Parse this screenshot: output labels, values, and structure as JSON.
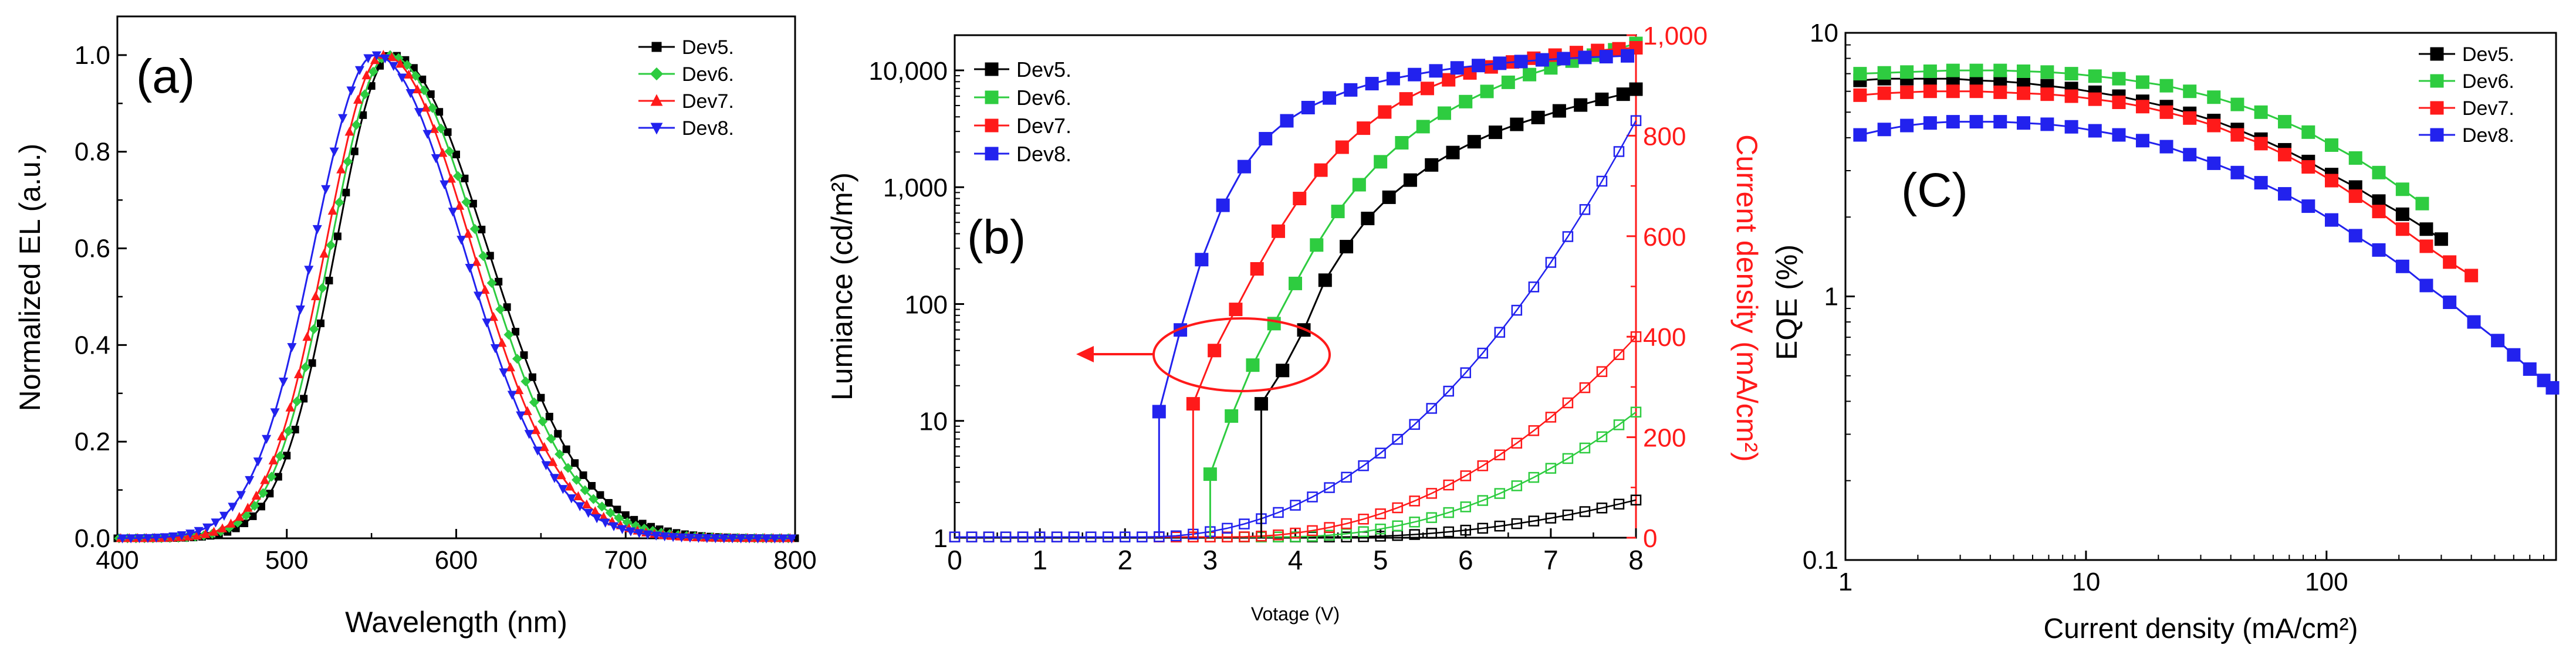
{
  "chart_data": [
    {
      "type": "line",
      "panel_label": "(a)",
      "xlabel": "Wavelength (nm)",
      "ylabel": "Normalized EL (a.u.)",
      "xlim": [
        400,
        800
      ],
      "ylim": [
        0,
        1.08
      ],
      "xticks": [
        "400",
        "500",
        "600",
        "700",
        "800"
      ],
      "yticks": [
        "0.0",
        "0.2",
        "0.4",
        "0.6",
        "0.8",
        "1.0"
      ],
      "grid": false,
      "legend": "top-right",
      "series": [
        {
          "name": "Dev5.",
          "color": "#000000",
          "marker": "square",
          "peak": 562,
          "sigma_left": 33,
          "sigma_right": 56
        },
        {
          "name": "Dev6.",
          "color": "#2ecc40",
          "marker": "diamond",
          "peak": 560,
          "sigma_left": 34,
          "sigma_right": 54
        },
        {
          "name": "Dev7.",
          "color": "#ff1a1a",
          "marker": "triangle-up",
          "peak": 557,
          "sigma_left": 34,
          "sigma_right": 52
        },
        {
          "name": "Dev8.",
          "color": "#2222ee",
          "marker": "triangle-down",
          "peak": 552,
          "sigma_left": 36,
          "sigma_right": 52
        }
      ]
    },
    {
      "type": "line",
      "panel_label": "(b)",
      "xlabel": "Votage (V)",
      "ylabel": "Lumiance (cd/m²)",
      "y2label": "Current density (mA/cm²)",
      "xlim": [
        0,
        8
      ],
      "ylim": [
        1,
        20000
      ],
      "yscale": "log",
      "y2lim": [
        0,
        1000
      ],
      "xticks": [
        "0",
        "1",
        "2",
        "3",
        "4",
        "5",
        "6",
        "7",
        "8"
      ],
      "yticks": [
        "1",
        "10",
        "100",
        "1,000",
        "10,000"
      ],
      "y2ticks": [
        "0",
        "200",
        "400",
        "600",
        "800",
        "1,000"
      ],
      "grid": false,
      "legend": "top-left",
      "annotation": "ellipse with arrow pointing to left (luminance) axis",
      "luminance_series": [
        {
          "name": "Dev5.",
          "color": "#000000",
          "v": [
            3.6,
            3.85,
            4.1,
            4.35,
            4.6,
            4.85,
            5.1,
            5.35,
            5.6,
            5.85,
            6.1,
            6.35,
            6.6,
            6.85,
            7.1,
            7.35,
            7.6,
            7.85,
            8.0
          ],
          "l": [
            14,
            27,
            60,
            160,
            310,
            540,
            820,
            1150,
            1550,
            1980,
            2450,
            2950,
            3450,
            3950,
            4500,
            5050,
            5650,
            6250,
            6900
          ]
        },
        {
          "name": "Dev6.",
          "color": "#2ecc40",
          "v": [
            3.0,
            3.25,
            3.5,
            3.75,
            4.0,
            4.25,
            4.5,
            4.75,
            5.0,
            5.25,
            5.5,
            5.75,
            6.0,
            6.25,
            6.5,
            6.75,
            7.0,
            7.25,
            7.5,
            7.75,
            8.0
          ],
          "l": [
            3.5,
            11,
            30,
            68,
            150,
            320,
            620,
            1050,
            1650,
            2400,
            3300,
            4300,
            5400,
            6600,
            7900,
            9200,
            10500,
            12000,
            13500,
            15000,
            17000
          ]
        },
        {
          "name": "Dev7.",
          "color": "#ff1a1a",
          "v": [
            2.8,
            3.05,
            3.3,
            3.55,
            3.8,
            4.05,
            4.3,
            4.55,
            4.8,
            5.05,
            5.3,
            5.55,
            5.8,
            6.05,
            6.3,
            6.55,
            6.8,
            7.05,
            7.3,
            7.55,
            7.8,
            8.0
          ],
          "l": [
            14,
            40,
            90,
            200,
            420,
            800,
            1400,
            2200,
            3200,
            4400,
            5700,
            7000,
            8300,
            9500,
            10700,
            11800,
            12700,
            13500,
            14200,
            14800,
            15300,
            15600
          ]
        },
        {
          "name": "Dev8.",
          "color": "#2222ee",
          "v": [
            2.4,
            2.65,
            2.9,
            3.15,
            3.4,
            3.65,
            3.9,
            4.15,
            4.4,
            4.65,
            4.9,
            5.15,
            5.4,
            5.65,
            5.9,
            6.15,
            6.4,
            6.65,
            6.9,
            7.15,
            7.4,
            7.65,
            7.9
          ],
          "l": [
            12,
            60,
            240,
            700,
            1500,
            2600,
            3700,
            4800,
            5800,
            6800,
            7700,
            8500,
            9200,
            9900,
            10500,
            11000,
            11500,
            11900,
            12300,
            12600,
            12900,
            13100,
            13300
          ]
        }
      ],
      "current_series": [
        {
          "name": "Dev5.",
          "color": "#000000",
          "v0": 4.5,
          "j_at_8": 75,
          "n": 2.0
        },
        {
          "name": "Dev6.",
          "color": "#2ecc40",
          "v0": 3.8,
          "j_at_8": 250,
          "n": 2.2
        },
        {
          "name": "Dev7.",
          "color": "#ff1a1a",
          "v0": 3.2,
          "j_at_8": 400,
          "n": 2.2
        },
        {
          "name": "Dev8.",
          "color": "#2222ee",
          "v0": 2.2,
          "j_at_8": 830,
          "n": 2.2
        }
      ]
    },
    {
      "type": "line",
      "panel_label": "(C)",
      "xlabel": "Current density (mA/cm²)",
      "ylabel": "EQE (%)",
      "xlim": [
        1,
        900
      ],
      "ylim": [
        0.1,
        10
      ],
      "xscale": "log",
      "yscale": "log",
      "xticks": [
        "1",
        "10",
        "100"
      ],
      "yticks": [
        "0.1",
        "1",
        "10"
      ],
      "grid": false,
      "legend": "top-right",
      "series": [
        {
          "name": "Dev5.",
          "color": "#000000",
          "x": [
            1.15,
            1.45,
            1.8,
            2.25,
            2.8,
            3.5,
            4.4,
            5.5,
            6.9,
            8.7,
            10.9,
            13.7,
            17.2,
            21.6,
            27,
            34,
            42.6,
            53.4,
            67,
            84,
            105,
            132,
            165,
            207,
            260,
            300
          ],
          "y": [
            6.6,
            6.7,
            6.7,
            6.7,
            6.7,
            6.6,
            6.55,
            6.45,
            6.3,
            6.15,
            5.95,
            5.75,
            5.5,
            5.25,
            4.95,
            4.65,
            4.3,
            3.95,
            3.6,
            3.25,
            2.9,
            2.6,
            2.3,
            2.05,
            1.8,
            1.65
          ]
        },
        {
          "name": "Dev6.",
          "color": "#2ecc40",
          "x": [
            1.15,
            1.45,
            1.8,
            2.25,
            2.8,
            3.5,
            4.4,
            5.5,
            6.9,
            8.7,
            10.9,
            13.7,
            17.2,
            21.6,
            27,
            34,
            42.6,
            53.4,
            67,
            84,
            105,
            132,
            165,
            207,
            250
          ],
          "y": [
            7.0,
            7.05,
            7.1,
            7.15,
            7.2,
            7.2,
            7.2,
            7.15,
            7.1,
            7.0,
            6.85,
            6.7,
            6.5,
            6.3,
            6.0,
            5.7,
            5.35,
            5.0,
            4.6,
            4.2,
            3.75,
            3.35,
            2.95,
            2.55,
            2.25
          ]
        },
        {
          "name": "Dev7.",
          "color": "#ff1a1a",
          "x": [
            1.15,
            1.45,
            1.8,
            2.25,
            2.8,
            3.5,
            4.4,
            5.5,
            6.9,
            8.7,
            10.9,
            13.7,
            17.2,
            21.6,
            27,
            34,
            42.6,
            53.4,
            67,
            84,
            105,
            132,
            165,
            207,
            260,
            325,
            400
          ],
          "y": [
            5.8,
            5.9,
            5.95,
            6.0,
            6.0,
            6.0,
            5.95,
            5.9,
            5.85,
            5.75,
            5.6,
            5.45,
            5.25,
            5.0,
            4.75,
            4.45,
            4.1,
            3.8,
            3.45,
            3.1,
            2.75,
            2.4,
            2.1,
            1.8,
            1.55,
            1.35,
            1.2
          ]
        },
        {
          "name": "Dev8.",
          "color": "#2222ee",
          "x": [
            1.15,
            1.45,
            1.8,
            2.25,
            2.8,
            3.5,
            4.4,
            5.5,
            6.9,
            8.7,
            10.9,
            13.7,
            17.2,
            21.6,
            27,
            34,
            42.6,
            53.4,
            67,
            84,
            105,
            132,
            165,
            207,
            260,
            325,
            410,
            515,
            600,
            700,
            800,
            870
          ],
          "y": [
            4.1,
            4.3,
            4.45,
            4.55,
            4.6,
            4.6,
            4.6,
            4.55,
            4.5,
            4.4,
            4.25,
            4.1,
            3.9,
            3.7,
            3.45,
            3.2,
            2.95,
            2.7,
            2.45,
            2.2,
            1.95,
            1.7,
            1.5,
            1.3,
            1.1,
            0.95,
            0.8,
            0.68,
            0.6,
            0.53,
            0.48,
            0.45
          ]
        }
      ]
    }
  ]
}
